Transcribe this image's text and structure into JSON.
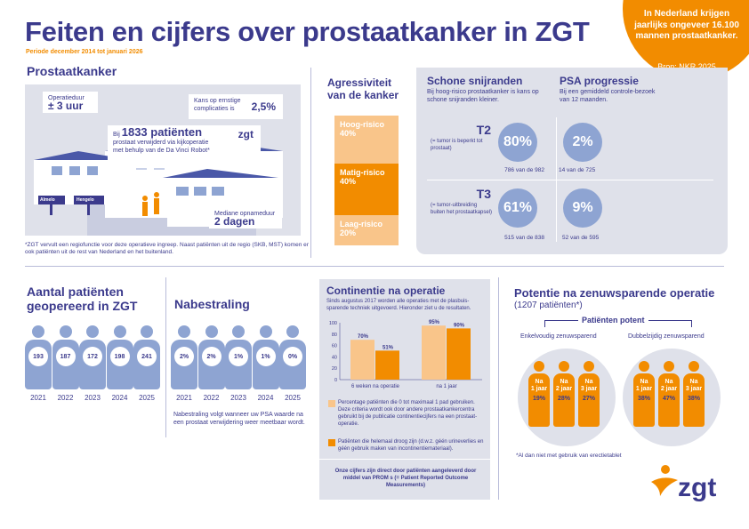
{
  "header": {
    "title": "Feiten en cijfers over prostaatkanker in ZGT",
    "period": "Periode december 2014 tot januari 2026",
    "circle_text": "In Nederland krijgen jaarlijks ongeveer 16.100 mannen prostaatkanker.",
    "circle_source": "Bron: NKR 2025"
  },
  "prostaat": {
    "heading": "Prostaatkanker",
    "opduur_label": "Operatieduur",
    "opduur_value": "± 3 uur",
    "kans_label": "Kans op ernstige complicaties is",
    "kans_value": "2,5%",
    "bij": "Bij",
    "patients": "1833 patiënten",
    "patients_text": "prostaat verwijderd via kijkoperatie met behulp van de Da Vinci Robot*",
    "logo": "zgt",
    "sign_almelo": "Almelo",
    "sign_hengelo": "Hengelo",
    "opname_label": "Mediane opnameduur",
    "opname_value": "2 dagen",
    "footnote": "*ZGT vervult een regiofunctie voor deze operatieve ingreep. Naast patiënten uit de regio (SKB, MST) komen er ook patiënten uit de rest van Nederland en het buitenland."
  },
  "agress": {
    "heading1": "Agressiviteit",
    "heading2": "van de kanker",
    "hoog_label": "Hoog-risico",
    "hoog_value": "40%",
    "matig_label": "Matig-risico",
    "matig_value": "40%",
    "laag_label": "Laag-risico",
    "laag_value": "20%"
  },
  "snij": {
    "heading": "Schone snijranden",
    "sub": "Bij hoog-risico prostaatkanker is kans op schone snijranden kleiner.",
    "psa_heading": "PSA progressie",
    "psa_sub": "Bij een gemiddeld controle-bezoek van 12 maanden.",
    "t2": "T2",
    "t2_sub": "(= tumor is beperkt tot prostaat)",
    "t2_snij": "80%",
    "t2_snij_n": "786 van de 982",
    "t2_psa": "2%",
    "t2_psa_n": "14 van de 725",
    "t3": "T3",
    "t3_sub": "(= tumor-uitbreiding buiten het prostaatkapsel)",
    "t3_snij": "61%",
    "t3_snij_n": "515 van de 838",
    "t3_psa": "9%",
    "t3_psa_n": "52 van de 595"
  },
  "aantal": {
    "heading1": "Aantal patiënten",
    "heading2": "geopereerd in ZGT",
    "values": [
      "193",
      "187",
      "172",
      "198",
      "241"
    ],
    "years": [
      "2021",
      "2022",
      "2023",
      "2024",
      "2025"
    ]
  },
  "nabestr": {
    "heading": "Nabestraling",
    "values": [
      "2%",
      "2%",
      "1%",
      "1%",
      "0%"
    ],
    "years": [
      "2021",
      "2022",
      "2023",
      "2024",
      "2025"
    ],
    "text": "Nabestraling volgt wanneer uw PSA waarde na een prostaat verwijdering weer meetbaar wordt."
  },
  "contin": {
    "heading": "Continentie na operatie",
    "sub": "Sinds augustus 2017 worden alle operaties met de plasbuis-sparende techniek uitgevoerd. Hieronder ziet u de resultaten.",
    "legend1": "Percentage patiënten die 0 tot maximaal 1 pad gebruiken. Deze criteria wordt ook door andere prostaatkankercentra gebruikt bij de publicatie continentiecijfers na een prostaat-operatie.",
    "legend2": "Patiënten die helemaal droog zijn (d.w.z. géén urineverlies en géén gebruik maken van incontinentiemateriaal).",
    "footer": "Onze cijfers zijn direct door patiënten aangeleverd door middel van PROM s (= Patient Reported Outcome Measurements)"
  },
  "chart_data": {
    "type": "bar",
    "categories": [
      "6 weken na operatie",
      "na 1 jaar"
    ],
    "series": [
      {
        "values": [
          70,
          95
        ],
        "color": "#f9c58a"
      },
      {
        "values": [
          51,
          90
        ],
        "color": "#f28c00"
      }
    ],
    "data_labels": [
      [
        "70%",
        "51%"
      ],
      [
        "95%",
        "90%"
      ]
    ],
    "yticks": [
      "0",
      "20",
      "40",
      "60",
      "80",
      "100"
    ],
    "ylim": [
      0,
      100
    ]
  },
  "zenuw": {
    "heading": "Potentie na zenuwsparende operatie",
    "sub": "(1207 patiënten*)",
    "potent": "Patiënten potent",
    "enkel": "Enkelvoudig zenuwsparend",
    "dubbel": "Dubbelzijdig zenuwsparend",
    "enkel_items": [
      {
        "na": "Na",
        "jaar": "1 jaar",
        "p": "19%"
      },
      {
        "na": "Na",
        "jaar": "2 jaar",
        "p": "28%"
      },
      {
        "na": "Na",
        "jaar": "3 jaar",
        "p": "27%"
      }
    ],
    "dubbel_items": [
      {
        "na": "Na",
        "jaar": "1 jaar",
        "p": "38%"
      },
      {
        "na": "Na",
        "jaar": "2 jaar",
        "p": "47%"
      },
      {
        "na": "Na",
        "jaar": "3 jaar",
        "p": "38%"
      }
    ],
    "footnote": "*Al dan niet met gebruik van erectietablet",
    "logo": "zgt"
  },
  "colors": {
    "navy": "#3b3a8c",
    "orange": "#f28c00",
    "light_orange": "#f9c58a",
    "person_blue": "#8ea4d2",
    "gray": "#dfe1ea"
  }
}
